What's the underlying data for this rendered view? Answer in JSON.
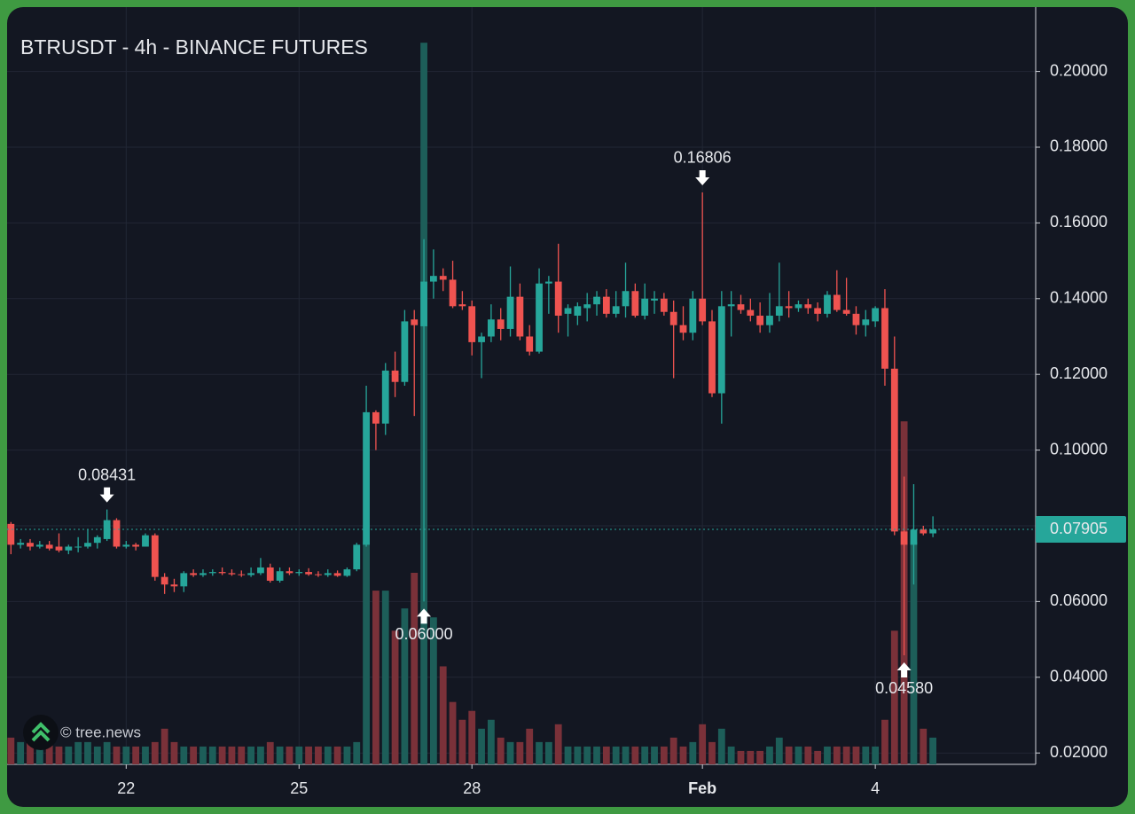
{
  "chart_data": {
    "type": "candlestick",
    "title": "BTRUSDT - 4h - BINANCE FUTURES",
    "watermark": "© tree.news",
    "up_color": "#26a69a",
    "down_color": "#ef5350",
    "up_volume_color": "#1d5e59",
    "down_volume_color": "#7a3139",
    "open": [
      0.0805,
      0.075,
      0.0755,
      0.0745,
      0.075,
      0.0745,
      0.0735,
      0.0745,
      0.0745,
      0.0755,
      0.0765,
      0.0815,
      0.0745,
      0.075,
      0.0745,
      0.0775,
      0.0665,
      0.0645,
      0.064,
      0.0675,
      0.067,
      0.0675,
      0.0678,
      0.0675,
      0.0672,
      0.067,
      0.0675,
      0.069,
      0.0655,
      0.068,
      0.0675,
      0.0678,
      0.0672,
      0.067,
      0.0675,
      0.0668,
      0.0685,
      0.075,
      0.11,
      0.107,
      0.121,
      0.118,
      0.1345,
      0.1327,
      0.1445,
      0.146,
      0.145,
      0.1385,
      0.138,
      0.1285,
      0.13,
      0.1345,
      0.132,
      0.1405,
      0.13,
      0.126,
      0.144,
      0.1445,
      0.136,
      0.1355,
      0.1375,
      0.1385,
      0.1405,
      0.136,
      0.138,
      0.142,
      0.1355,
      0.1395,
      0.14,
      0.1365,
      0.133,
      0.131,
      0.14,
      0.134,
      0.115,
      0.138,
      0.1385,
      0.137,
      0.1355,
      0.133,
      0.1355,
      0.138,
      0.1375,
      0.1385,
      0.1375,
      0.136,
      0.141,
      0.137,
      0.136,
      0.133,
      0.134,
      0.1375,
      0.1215,
      0.0785,
      0.075,
      0.079,
      0.078
    ],
    "high": [
      0.081,
      0.0765,
      0.0765,
      0.076,
      0.076,
      0.078,
      0.075,
      0.077,
      0.079,
      0.0775,
      0.08431,
      0.082,
      0.076,
      0.0755,
      0.078,
      0.078,
      0.0675,
      0.066,
      0.068,
      0.0685,
      0.0685,
      0.0685,
      0.069,
      0.0685,
      0.0682,
      0.069,
      0.0715,
      0.07,
      0.069,
      0.069,
      0.0685,
      0.0688,
      0.068,
      0.0685,
      0.0682,
      0.069,
      0.0755,
      0.117,
      0.1105,
      0.123,
      0.126,
      0.137,
      0.137,
      0.1557,
      0.153,
      0.148,
      0.15,
      0.142,
      0.1395,
      0.131,
      0.1385,
      0.1375,
      0.1485,
      0.144,
      0.133,
      0.148,
      0.146,
      0.1545,
      0.1385,
      0.139,
      0.1415,
      0.142,
      0.1425,
      0.142,
      0.1495,
      0.144,
      0.144,
      0.142,
      0.1415,
      0.1395,
      0.138,
      0.142,
      0.16806,
      0.137,
      0.142,
      0.142,
      0.141,
      0.14,
      0.139,
      0.1415,
      0.1495,
      0.142,
      0.1395,
      0.14,
      0.139,
      0.142,
      0.1475,
      0.1455,
      0.138,
      0.137,
      0.138,
      0.1425,
      0.13,
      0.093,
      0.091,
      0.08,
      0.0825
    ],
    "low": [
      0.0725,
      0.074,
      0.0735,
      0.074,
      0.0735,
      0.073,
      0.0725,
      0.073,
      0.074,
      0.074,
      0.076,
      0.074,
      0.074,
      0.0735,
      0.0745,
      0.0655,
      0.062,
      0.0625,
      0.0625,
      0.0665,
      0.0665,
      0.0668,
      0.067,
      0.0668,
      0.0665,
      0.0665,
      0.067,
      0.065,
      0.065,
      0.067,
      0.0668,
      0.0668,
      0.0665,
      0.0665,
      0.0665,
      0.0665,
      0.068,
      0.0745,
      0.1,
      0.104,
      0.114,
      0.117,
      0.109,
      0.06,
      0.14,
      0.142,
      0.1375,
      0.137,
      0.125,
      0.119,
      0.1285,
      0.129,
      0.13,
      0.129,
      0.125,
      0.1255,
      0.136,
      0.131,
      0.13,
      0.133,
      0.134,
      0.1355,
      0.135,
      0.135,
      0.135,
      0.135,
      0.1345,
      0.136,
      0.1355,
      0.119,
      0.129,
      0.129,
      0.133,
      0.114,
      0.107,
      0.13,
      0.136,
      0.134,
      0.131,
      0.131,
      0.134,
      0.135,
      0.1365,
      0.136,
      0.134,
      0.135,
      0.1365,
      0.1355,
      0.1305,
      0.13,
      0.1325,
      0.117,
      0.0775,
      0.0458,
      0.0645,
      0.0775,
      0.077
    ],
    "close": [
      0.075,
      0.0755,
      0.0745,
      0.075,
      0.074,
      0.0735,
      0.0745,
      0.0745,
      0.0755,
      0.077,
      0.0815,
      0.0745,
      0.075,
      0.0745,
      0.0775,
      0.0665,
      0.0645,
      0.064,
      0.0675,
      0.067,
      0.0675,
      0.0678,
      0.0675,
      0.0672,
      0.067,
      0.0675,
      0.069,
      0.0655,
      0.068,
      0.0675,
      0.0678,
      0.0672,
      0.067,
      0.0675,
      0.0668,
      0.0685,
      0.075,
      0.11,
      0.107,
      0.121,
      0.118,
      0.134,
      0.133,
      0.1445,
      0.146,
      0.145,
      0.138,
      0.138,
      0.1285,
      0.13,
      0.1345,
      0.132,
      0.1405,
      0.13,
      0.126,
      0.144,
      0.1445,
      0.1355,
      0.1375,
      0.138,
      0.1385,
      0.1405,
      0.136,
      0.138,
      0.142,
      0.1355,
      0.14,
      0.14,
      0.1365,
      0.133,
      0.131,
      0.14,
      0.134,
      0.115,
      0.138,
      0.1385,
      0.137,
      0.1355,
      0.133,
      0.1355,
      0.138,
      0.1375,
      0.1385,
      0.1375,
      0.136,
      0.141,
      0.137,
      0.136,
      0.133,
      0.1345,
      0.1375,
      0.1215,
      0.0785,
      0.075,
      0.079,
      0.078,
      0.07905
    ],
    "volume": [
      6,
      5,
      6,
      5,
      5,
      4,
      4,
      5,
      5,
      4,
      5,
      4,
      4,
      4,
      4,
      5,
      8,
      5,
      4,
      4,
      4,
      4,
      4,
      4,
      4,
      4,
      4,
      5,
      4,
      4,
      4,
      4,
      4,
      4,
      4,
      4,
      5,
      50,
      39,
      39,
      30,
      35,
      43,
      162,
      33,
      22,
      14,
      10,
      12,
      8,
      10,
      6,
      5,
      5,
      8,
      5,
      5,
      9,
      4,
      4,
      4,
      4,
      4,
      4,
      4,
      4,
      4,
      4,
      4,
      6,
      4,
      5,
      9,
      5,
      8,
      4,
      3,
      3,
      3,
      4,
      6,
      4,
      4,
      4,
      3,
      4,
      4,
      4,
      4,
      4,
      4,
      10,
      30,
      77,
      50,
      8,
      6
    ],
    "vlim": [
      0,
      170
    ],
    "xlim": [
      -0.4,
      106.7
    ],
    "xticks": [
      {
        "value": 12,
        "label": "22"
      },
      {
        "value": 30,
        "label": "25"
      },
      {
        "value": 48,
        "label": "28"
      },
      {
        "value": 72,
        "label": "Feb"
      },
      {
        "value": 90,
        "label": "4"
      }
    ],
    "ylim": [
      0.017,
      0.217
    ],
    "yticks": [
      {
        "value": 0.02,
        "label": "0.02000"
      },
      {
        "value": 0.04,
        "label": "0.04000"
      },
      {
        "value": 0.06,
        "label": "0.06000"
      },
      {
        "value": 0.08,
        "label": "0.08000"
      },
      {
        "value": 0.1,
        "label": "0.10000"
      },
      {
        "value": 0.12,
        "label": "0.12000"
      },
      {
        "value": 0.14,
        "label": "0.14000"
      },
      {
        "value": 0.16,
        "label": "0.16000"
      },
      {
        "value": 0.18,
        "label": "0.18000"
      },
      {
        "value": 0.2,
        "label": "0.20000"
      }
    ],
    "last_price": {
      "value": 0.07905,
      "label": "0.07905"
    },
    "annotations": [
      {
        "label": "0.08431",
        "at": 10,
        "kind": "high"
      },
      {
        "label": "0.06000",
        "at": 43,
        "kind": "low"
      },
      {
        "label": "0.16806",
        "at": 72,
        "kind": "high"
      },
      {
        "label": "0.04580",
        "at": 93,
        "kind": "low"
      }
    ],
    "grid": true
  }
}
